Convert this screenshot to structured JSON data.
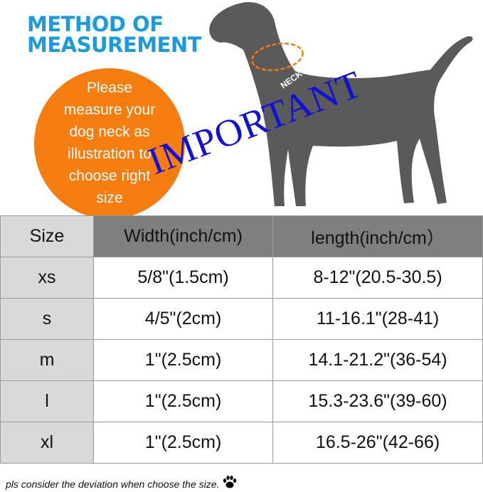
{
  "heading": {
    "line1": "METHOD OF",
    "line2": "MEASUREMENT"
  },
  "instruction": [
    "Please",
    "measure your",
    "dog neck as",
    "illustration to",
    "choose right",
    "size"
  ],
  "neck_label": "NECK",
  "stamp": "IMPORTANT",
  "table": {
    "headers": [
      "Size",
      "Width(inch/cm)",
      "length(inch/cm）"
    ],
    "rows": [
      [
        "xs",
        "5/8\"(1.5cm)",
        "8-12\"(20.5-30.5)"
      ],
      [
        "s",
        "4/5\"(2cm)",
        "11-16.1\"(28-41)"
      ],
      [
        "m",
        "1\"(2.5cm)",
        "14.1-21.2\"(36-54)"
      ],
      [
        "l",
        "1\"(2.5cm)",
        "15.3-23.6\"(39-60)"
      ],
      [
        "xl",
        "1\"(2.5cm)",
        "16.5-26\"(42-66)"
      ]
    ]
  },
  "footer": "pls consider the deviation when choose the size.",
  "colors": {
    "title": "#1a9be0",
    "circle": "#f57c0e",
    "stamp": "#1010d8",
    "dog": "#5a5a5a",
    "header_dark": "#7f7f7f",
    "size_col": "#d9d9d9"
  }
}
